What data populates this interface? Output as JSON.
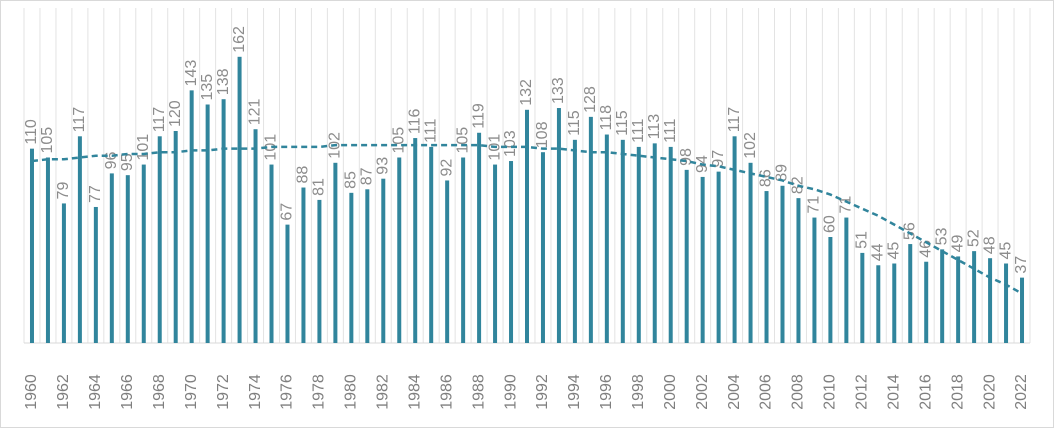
{
  "chart_data": {
    "type": "bar",
    "categories": [
      "1960",
      null,
      "1962",
      null,
      "1964",
      null,
      "1966",
      null,
      "1968",
      null,
      "1970",
      null,
      "1972",
      null,
      "1974",
      null,
      "1976",
      null,
      "1978",
      null,
      "1980",
      null,
      "1982",
      null,
      "1984",
      null,
      "1986",
      null,
      "1988",
      null,
      "1990",
      null,
      "1992",
      null,
      "1994",
      null,
      "1996",
      null,
      "1998",
      null,
      "2000",
      null,
      "2002",
      null,
      "2004",
      null,
      "2006",
      null,
      "2008",
      null,
      "2010",
      null,
      "2012",
      null,
      "2014",
      null,
      "2016",
      null,
      "2018",
      null,
      "2020",
      null,
      "2022"
    ],
    "values": [
      110,
      105,
      79,
      117,
      77,
      96,
      95,
      101,
      117,
      120,
      143,
      135,
      138,
      162,
      121,
      101,
      67,
      88,
      81,
      102,
      85,
      87,
      93,
      105,
      116,
      111,
      92,
      105,
      119,
      101,
      103,
      132,
      108,
      133,
      115,
      128,
      118,
      115,
      111,
      113,
      111,
      98,
      94,
      97,
      117,
      102,
      86,
      89,
      82,
      71,
      60,
      71,
      51,
      44,
      45,
      56,
      46,
      53,
      49,
      52,
      48,
      45,
      37
    ],
    "color": "#31859c",
    "trend": {
      "color": "#31859c",
      "values": [
        103,
        104,
        104,
        105,
        106,
        106,
        107,
        107,
        108,
        108,
        109,
        109,
        110,
        110,
        110,
        111,
        111,
        111,
        111,
        112,
        112,
        112,
        112,
        112,
        112,
        112,
        112,
        112,
        112,
        111,
        111,
        111,
        110,
        110,
        109,
        108,
        108,
        107,
        106,
        105,
        104,
        103,
        101,
        100,
        98,
        96,
        94,
        92,
        89,
        87,
        84,
        80,
        76,
        72,
        67,
        62,
        57,
        52,
        47,
        42,
        37,
        33,
        28
      ]
    },
    "ylim": [
      0,
      180
    ]
  }
}
